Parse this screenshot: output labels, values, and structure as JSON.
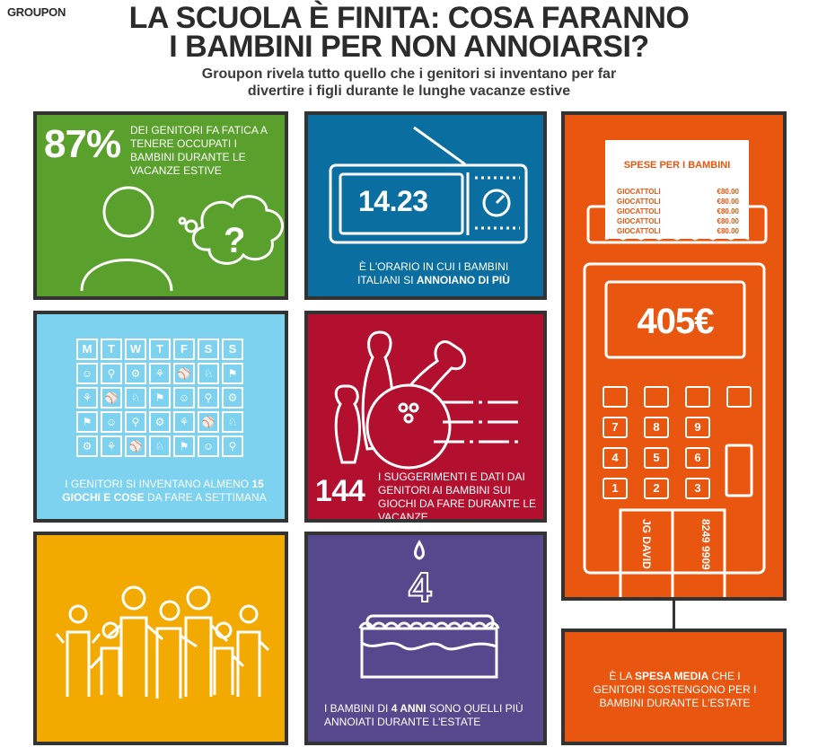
{
  "header": {
    "brand": "GROUPON",
    "title_line1": "LA SCUOLA È FINITA: COSA FARANNO",
    "title_line2": "I BAMBINI PER NON ANNOIARSI?",
    "subtitle_line1": "Groupon rivela tutto quello che i genitori si inventano per far",
    "subtitle_line2": "divertire i figli durante le lunghe vacanze estive"
  },
  "colors": {
    "green": "#5aa02c",
    "blue": "#0a6fa0",
    "orange": "#e8560f",
    "light_blue": "#7dd2f0",
    "crimson": "#b3102f",
    "yellow": "#f2a900",
    "purple": "#56488c",
    "border": "#333333"
  },
  "panel_green": {
    "stat": "87%",
    "text": "DEI GENITORI FA FATICA A TENERE OCCUPATI I BAMBINI DURANTE LE VACANZE ESTIVE",
    "icon": "thinking-person-icon"
  },
  "panel_blue": {
    "time": "14.23",
    "text_pre": "È L'ORARIO IN CUI I BAMBINI ITALIANI SI ",
    "text_bold": "ANNOIANO DI PIÙ",
    "icon": "radio-icon"
  },
  "panel_lightblue": {
    "days": [
      "M",
      "T",
      "W",
      "T",
      "F",
      "S",
      "S"
    ],
    "text_pre": "I GENITORI SI INVENTANO ALMENO ",
    "text_bold": "15 GIOCHI E COSE",
    "text_post": " DA FARE A SETTIMANA",
    "icon": "calendar-icon"
  },
  "panel_crimson": {
    "stat": "144",
    "text": "I SUGGERIMENTI E DATI DAI GENITORI AI BAMBINI SUI GIOCHI DA FARE DURANTE LE VACANZE",
    "icon": "bowling-icon"
  },
  "panel_yellow": {
    "icon": "family-group-icon"
  },
  "panel_purple": {
    "text_pre": "I BAMBINI DI ",
    "text_bold": "4 ANNI",
    "text_post": " SONO QUELLI PIÙ ANNOIATI DURANTE L'ESTATE",
    "candle_number": "4",
    "icon": "birthday-cake-icon"
  },
  "panel_orange": {
    "receipt_title": "SPESE PER I BAMBINI",
    "receipt_lines": [
      {
        "item": "GIOCATTOLI",
        "amount": "€80.00"
      },
      {
        "item": "GIOCATTOLI",
        "amount": "€80.00"
      },
      {
        "item": "GIOCATTOLI",
        "amount": "€80.00"
      },
      {
        "item": "GIOCATTOLI",
        "amount": "€80.00"
      },
      {
        "item": "GIOCATTOLI",
        "amount": "€80.00"
      }
    ],
    "amount": "405€",
    "keys": [
      "7",
      "8",
      "9",
      "4",
      "5",
      "6",
      "1",
      "2",
      "3"
    ],
    "card_name": "JG DAVID",
    "card_number": "8249 9909",
    "icon": "card-terminal-icon"
  },
  "panel_orange_bottom": {
    "text_pre": "È LA ",
    "text_bold": "SPESA MEDIA",
    "text_post": " CHE I GENITORI SOSTENGONO PER I BAMBINI DURANTE L'ESTATE"
  }
}
